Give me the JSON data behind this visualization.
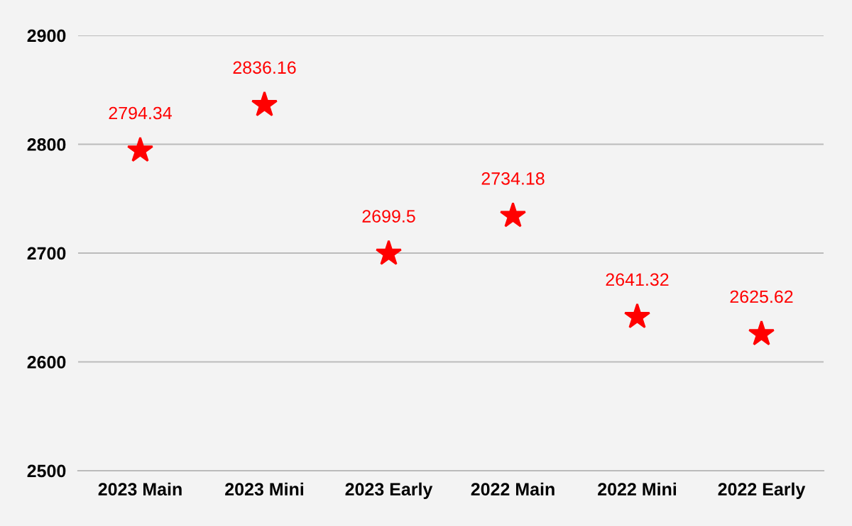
{
  "chart_data": {
    "type": "scatter",
    "categories": [
      "2023 Main",
      "2023 Mini",
      "2023 Early",
      "2022 Main",
      "2022 Mini",
      "2022 Early"
    ],
    "values": [
      2794.34,
      2836.16,
      2699.5,
      2734.18,
      2641.32,
      2625.62
    ],
    "color": "#ff0000",
    "marker": "star",
    "data_labels": true,
    "ylim": [
      2500,
      2900
    ],
    "yticks": [
      2500,
      2600,
      2700,
      2800,
      2900
    ],
    "grid": "y",
    "legend": false
  }
}
